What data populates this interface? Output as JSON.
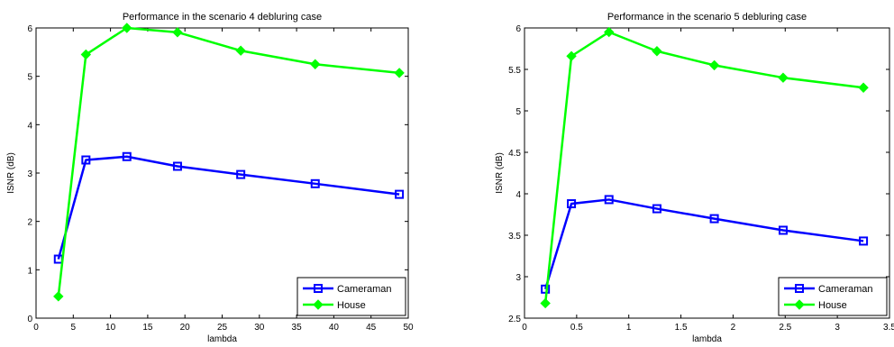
{
  "chart_data": [
    {
      "type": "line",
      "title": "Performance in the scenario 4 debluring case",
      "xlabel": "lambda",
      "ylabel": "ISNR (dB)",
      "xlim": [
        0,
        50
      ],
      "ylim": [
        0,
        6
      ],
      "xticks": [
        0,
        5,
        10,
        15,
        20,
        25,
        30,
        35,
        40,
        45,
        50
      ],
      "yticks": [
        0,
        1,
        2,
        3,
        4,
        5,
        6
      ],
      "grid": false,
      "legend_position": "bottom-right",
      "series": [
        {
          "name": "Cameraman",
          "color": "#0000ff",
          "marker": "square",
          "x": [
            3,
            6.7,
            12.2,
            19,
            27.5,
            37.5,
            48.8
          ],
          "y": [
            1.22,
            3.27,
            3.34,
            3.14,
            2.97,
            2.78,
            2.56
          ]
        },
        {
          "name": "House",
          "color": "#00ff00",
          "marker": "diamond",
          "x": [
            3,
            6.7,
            12.2,
            19,
            27.5,
            37.5,
            48.8
          ],
          "y": [
            0.45,
            5.45,
            6.0,
            5.91,
            5.53,
            5.25,
            5.07
          ]
        }
      ]
    },
    {
      "type": "line",
      "title": "Performance in the scenario 5 debluring case",
      "xlabel": "lambda",
      "ylabel": "ISNR (dB)",
      "xlim": [
        0,
        3.5
      ],
      "ylim": [
        2.5,
        6
      ],
      "xticks": [
        0,
        0.5,
        1,
        1.5,
        2,
        2.5,
        3,
        3.5
      ],
      "yticks": [
        2.5,
        3,
        3.5,
        4,
        4.5,
        5,
        5.5,
        6
      ],
      "grid": false,
      "legend_position": "bottom-right",
      "series": [
        {
          "name": "Cameraman",
          "color": "#0000ff",
          "marker": "square",
          "x": [
            0.2,
            0.45,
            0.81,
            1.27,
            1.82,
            2.48,
            3.25
          ],
          "y": [
            2.85,
            3.88,
            3.93,
            3.82,
            3.7,
            3.56,
            3.43
          ]
        },
        {
          "name": "House",
          "color": "#00ff00",
          "marker": "diamond",
          "x": [
            0.2,
            0.45,
            0.81,
            1.27,
            1.82,
            2.48,
            3.25
          ],
          "y": [
            2.68,
            5.66,
            5.95,
            5.72,
            5.55,
            5.4,
            5.28
          ]
        }
      ]
    }
  ]
}
